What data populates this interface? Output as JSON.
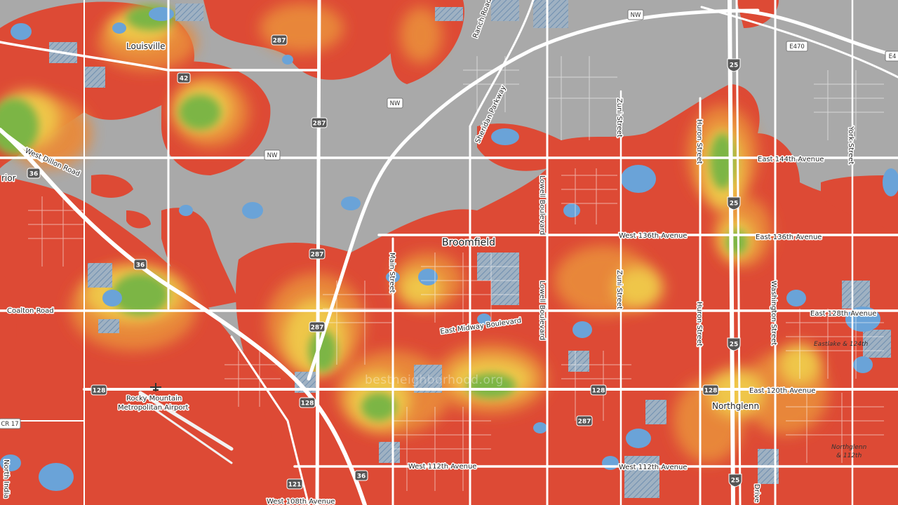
{
  "map": {
    "watermark": "bestneighborhood.org",
    "colors": {
      "base": "#a9a9a9",
      "water": "#6aa3d8",
      "road": "#ffffff",
      "heat_high": "#dd4a35",
      "heat_mid": "#e98a3a",
      "heat_warm": "#efc64a",
      "heat_low": "#8cc04a",
      "heat_cool": "#4f9e3a",
      "hatch": "#7fa3c4"
    },
    "places": {
      "louisville": "Louisville",
      "broomfield": "Broomfield",
      "northglenn": "Northglenn",
      "superior_partial": "rior",
      "airport_line1": "Rocky Mountain",
      "airport_line2": "Metropolitan Airport"
    },
    "pois": {
      "eastlake": "Eastlake & 124th",
      "northglenn_112_line1": "Northglenn",
      "northglenn_112_line2": "& 112th"
    },
    "roads": {
      "w_dillon": "West Dillon Road",
      "coalton": "Coalton Road",
      "e144": "East 144th Avenue",
      "w136": "West 136th Avenue",
      "e136": "East 136th Avenue",
      "e128": "East 128th Avenue",
      "e_midway": "East Midway Boulevard",
      "e120": "East 120th Avenue",
      "w112": "West 112th Avenue",
      "w112_east": "West 112th Avenue",
      "w108": "West 108th Avenue",
      "main_st": "Main Street",
      "lowell_n": "Lowell Boulevard",
      "lowell_s": "Lowell Boulevard",
      "zuni_n": "Zuni Street",
      "zuni_s": "Zuni Street",
      "huron_n": "Huron Street",
      "huron_s": "Huron Street",
      "washington": "Washington Street",
      "york": "York Street",
      "sheridan": "Sheridan Parkway",
      "north_indiana": "North India",
      "ranch_rd": "Ranch Road",
      "drive": "Drive"
    },
    "shields": {
      "us287_a": "287",
      "us287_b": "287",
      "us287_c": "287",
      "us287_d": "287",
      "us287_e": "287",
      "us36_a": "36",
      "us36_b": "36",
      "us36_c": "36",
      "sh42": "42",
      "sh128_a": "128",
      "sh128_b": "128",
      "sh128_c": "128",
      "sh128_d": "128",
      "sh121": "121",
      "i25_a": "25",
      "i25_b": "25",
      "i25_c": "25",
      "i25_d": "25",
      "nw_a": "NW",
      "nw_b": "NW",
      "nw_c": "NW",
      "e470": "E470",
      "e4_partial": "E4",
      "cr17": "CR 17"
    }
  }
}
